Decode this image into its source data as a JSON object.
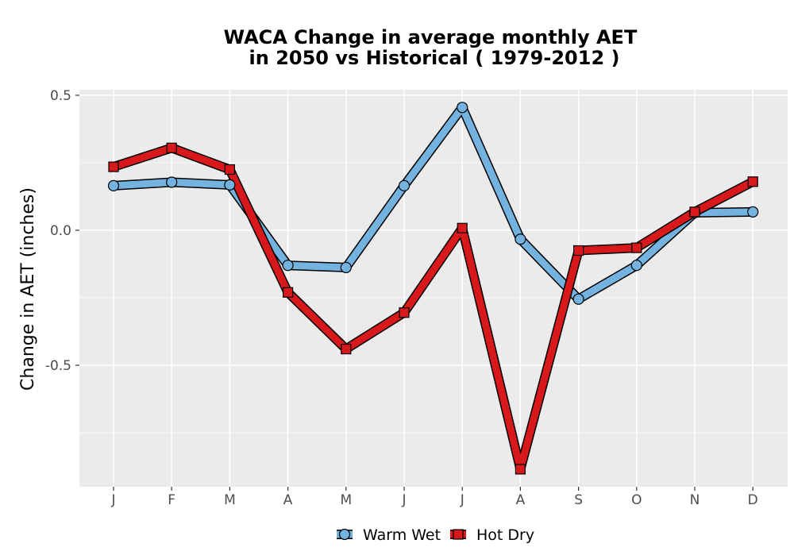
{
  "chart_data": {
    "type": "line",
    "title_lines": [
      "WACA  Change in average monthly AET",
      "in 2050 vs Historical ( 1979-2012 )"
    ],
    "xlabel": "",
    "ylabel": "Change in AET (inches)",
    "categories": [
      "J",
      "F",
      "M",
      "A",
      "M",
      "J",
      "J",
      "A",
      "S",
      "O",
      "N",
      "D"
    ],
    "y_ticks": [
      {
        "value": 0.5,
        "label": "0.5"
      },
      {
        "value": 0.0,
        "label": "0.0"
      },
      {
        "value": -0.5,
        "label": "-0.5"
      }
    ],
    "ylim": [
      -0.95,
      0.52
    ],
    "grid": true,
    "legend_position": "bottom",
    "series": [
      {
        "name": "Warm Wet",
        "marker": "circle",
        "color": "#74b3e0",
        "values": [
          0.165,
          0.178,
          0.168,
          -0.13,
          -0.138,
          0.165,
          0.455,
          -0.033,
          -0.255,
          -0.13,
          0.065,
          0.068
        ]
      },
      {
        "name": "Hot Dry",
        "marker": "square",
        "color": "#d7191c",
        "values": [
          0.235,
          0.305,
          0.225,
          -0.23,
          -0.44,
          -0.305,
          0.008,
          -0.885,
          -0.075,
          -0.065,
          0.068,
          0.18
        ]
      }
    ]
  }
}
